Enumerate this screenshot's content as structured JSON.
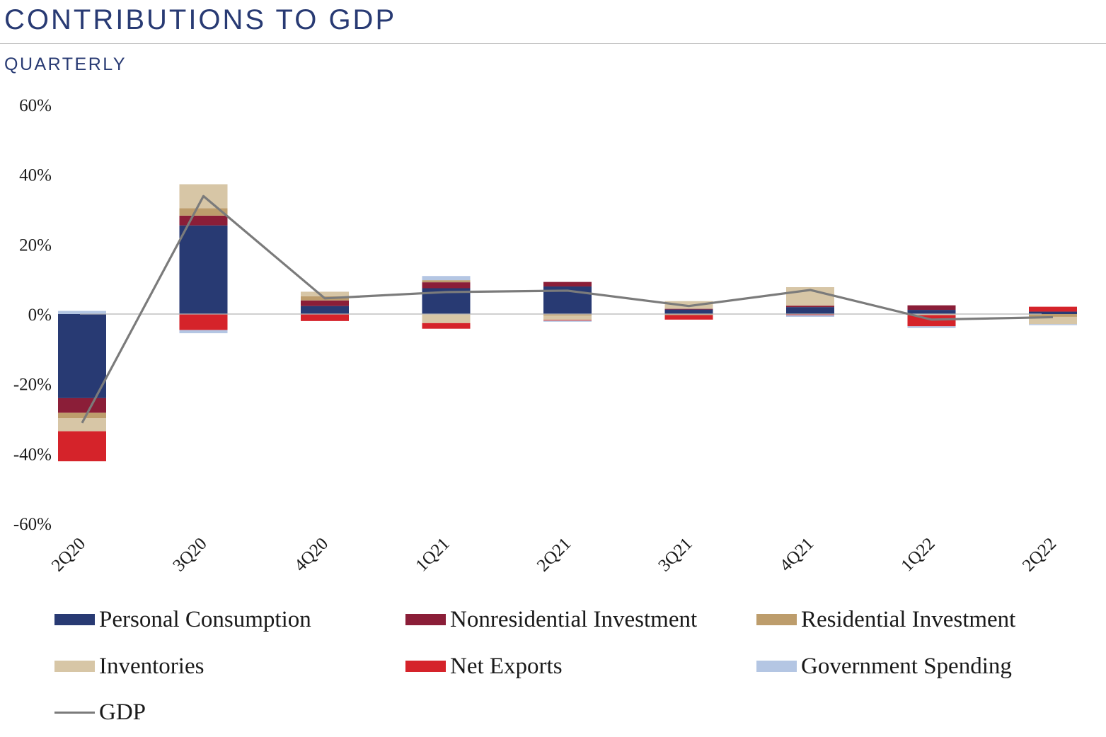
{
  "header": {
    "title": "CONTRIBUTIONS TO GDP",
    "subtitle": "QUARTERLY"
  },
  "chart_data": {
    "type": "bar",
    "stacked": true,
    "title": "CONTRIBUTIONS TO GDP",
    "subtitle": "QUARTERLY",
    "categories": [
      "2Q20",
      "3Q20",
      "4Q20",
      "1Q21",
      "2Q21",
      "3Q21",
      "4Q21",
      "1Q22",
      "2Q22"
    ],
    "ylim": [
      -60,
      60
    ],
    "yticks": [
      60,
      40,
      20,
      0,
      -20,
      -40,
      -60
    ],
    "ytick_labels": [
      "60%",
      "40%",
      "20%",
      "0%",
      "-20%",
      "-40%",
      "-60%"
    ],
    "legend_position": "bottom",
    "grid": false,
    "series": [
      {
        "name": "Personal Consumption",
        "color": "#283a73",
        "values": [
          -24.1,
          25.4,
          2.3,
          7.4,
          7.9,
          1.3,
          2.0,
          1.2,
          0.7
        ]
      },
      {
        "name": "Nonresidential Investment",
        "color": "#8b1e38",
        "values": [
          -4.2,
          2.8,
          1.6,
          1.7,
          1.3,
          0.2,
          0.4,
          1.3,
          0.0
        ]
      },
      {
        "name": "Residential Investment",
        "color": "#bd9d6c",
        "values": [
          -1.5,
          2.1,
          1.2,
          0.6,
          -0.4,
          -0.3,
          -0.1,
          0.0,
          -0.8
        ]
      },
      {
        "name": "Inventories",
        "color": "#d7c6a6",
        "values": [
          -3.8,
          6.9,
          1.3,
          -2.6,
          -1.3,
          2.2,
          5.3,
          -0.3,
          -2.1
        ]
      },
      {
        "name": "Net Exports",
        "color": "#d5232a",
        "values": [
          -8.6,
          -4.6,
          -2.0,
          -1.6,
          -0.2,
          -1.3,
          -0.2,
          -3.2,
          1.4
        ]
      },
      {
        "name": "Government Spending",
        "color": "#b4c6e3",
        "values": [
          0.9,
          -0.9,
          0.0,
          1.2,
          -0.3,
          0.0,
          -0.5,
          -0.5,
          -0.3
        ]
      }
    ],
    "line_series": {
      "name": "GDP",
      "color": "#7b7b7b",
      "values": [
        -31.2,
        33.8,
        4.5,
        6.3,
        6.7,
        2.3,
        6.9,
        -1.6,
        -0.9
      ]
    }
  }
}
